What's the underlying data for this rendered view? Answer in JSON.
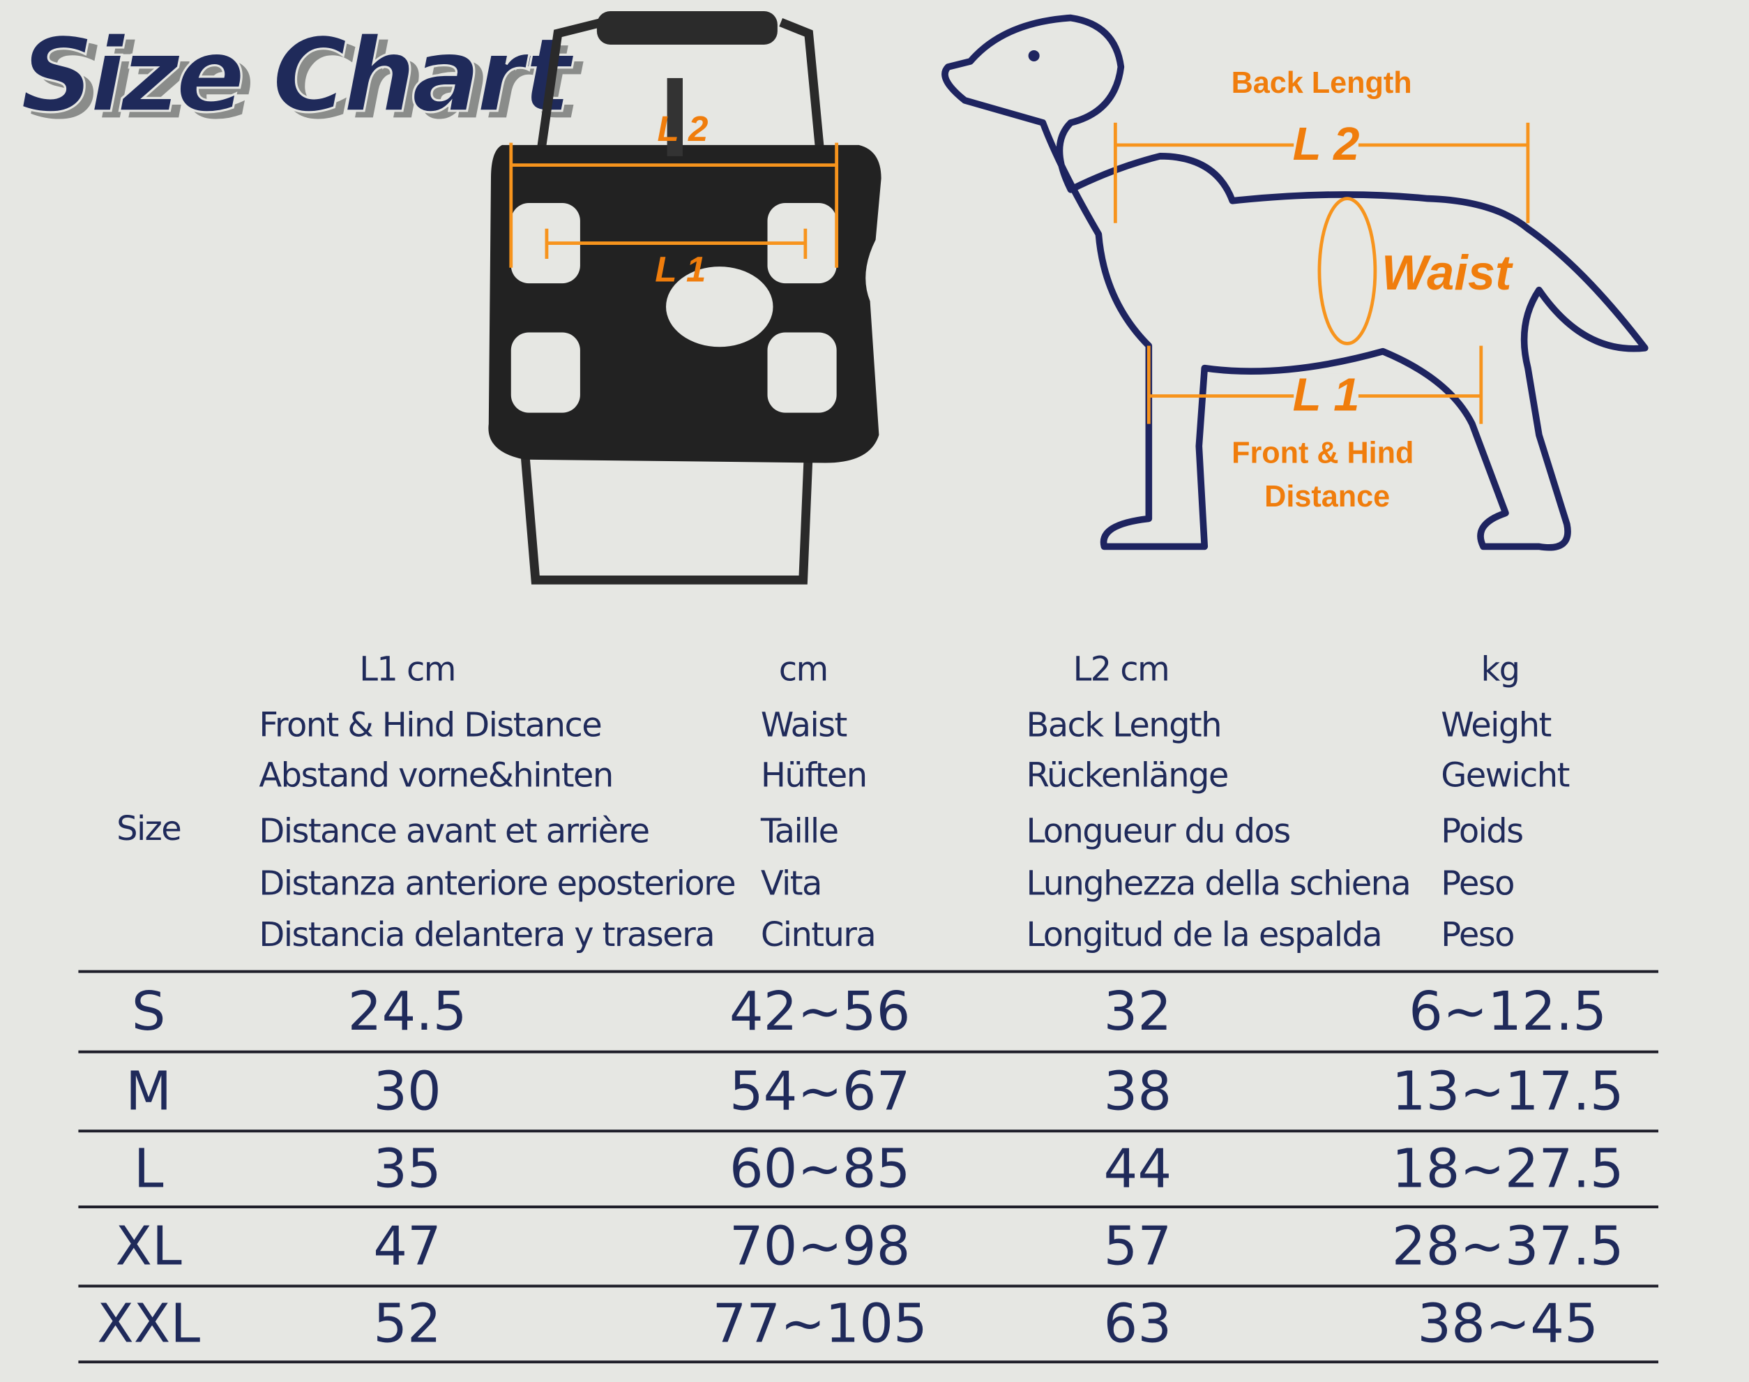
{
  "header": {
    "title": "Size Chart"
  },
  "harness": {
    "l2": "L 2",
    "l1": "L 1"
  },
  "dog": {
    "back_length": "Back Length",
    "l2": "L 2",
    "waist": "Waist",
    "l1": "L 1",
    "front_hind": [
      "Front & Hind",
      "Distance"
    ]
  },
  "table": {
    "size_header": "Size",
    "columns": [
      {
        "unit": "L1  cm",
        "names": [
          "Front & Hind Distance",
          "Abstand vorne&hinten",
          "Distance avant et arrière",
          "Distanza anteriore eposteriore",
          "Distancia delantera y trasera"
        ]
      },
      {
        "unit": "cm",
        "names": [
          "Waist",
          "Hüften",
          "Taille",
          "Vita",
          "Cintura"
        ]
      },
      {
        "unit": "L2 cm",
        "names": [
          "Back Length",
          "Rückenlänge",
          "Longueur du dos",
          "Lunghezza della schiena",
          "Longitud de la espalda"
        ]
      },
      {
        "unit": "kg",
        "names": [
          "Weight",
          "Gewicht",
          "Poids",
          "Peso",
          "Peso"
        ]
      }
    ],
    "rows": [
      [
        "S",
        24.5,
        "42~56",
        32,
        "6~12.5"
      ],
      [
        "M",
        30,
        "54~67",
        38,
        "13~17.5"
      ],
      [
        "L",
        35,
        "60~85",
        44,
        "18~27.5"
      ],
      [
        "XL",
        47,
        "70~98",
        57,
        "28~37.5"
      ],
      [
        "XXL",
        52,
        "77~105",
        63,
        "38~45"
      ]
    ]
  }
}
